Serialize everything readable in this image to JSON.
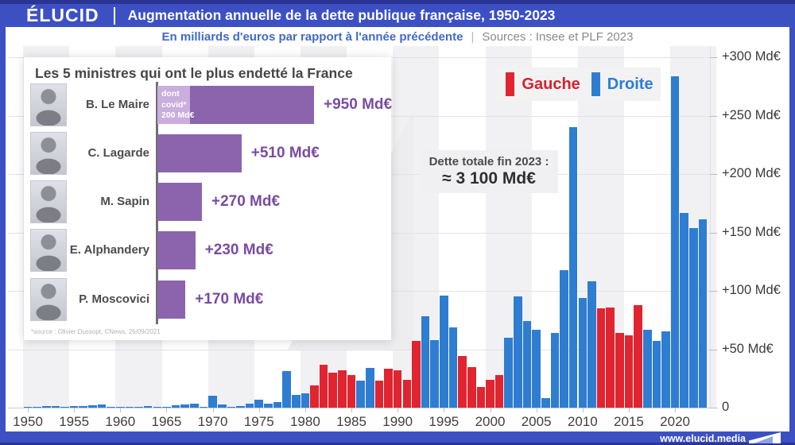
{
  "header": {
    "logo": "ÉLUCID",
    "title": "Augmentation annuelle de la dette publique française, 1950-2023"
  },
  "subtitle": {
    "unit": "En milliards d'euros par rapport à l'année précédente",
    "separator": "|",
    "sources": "Sources : Insee et PLF 2023"
  },
  "legend": {
    "items": [
      {
        "label": "Gauche",
        "color": "#d6222f",
        "swatch": "#e02430"
      },
      {
        "label": "Droite",
        "color": "#2d7cd6",
        "swatch": "#2e7dd1"
      }
    ]
  },
  "annotation": {
    "line1": "Dette totale fin 2023 :",
    "line2": "≈ 3 100 Md€"
  },
  "inset": {
    "title": "Les 5 ministres qui ont le plus endetté la France",
    "bar_color": "#8c64ae",
    "covid_color": "#c9aede",
    "ministers": [
      {
        "name": "B. Le Maire",
        "value": 950,
        "label": "+950 Md€",
        "covid_value": 200,
        "covid_note": [
          "dont",
          "covid*",
          "200 Md€"
        ]
      },
      {
        "name": "C. Lagarde",
        "value": 510,
        "label": "+510 Md€"
      },
      {
        "name": "M. Sapin",
        "value": 270,
        "label": "+270 Md€"
      },
      {
        "name": "E. Alphandery",
        "value": 230,
        "label": "+230 Md€"
      },
      {
        "name": "P. Moscovici",
        "value": 170,
        "label": "+170 Md€"
      }
    ],
    "source": "*source : Olivier Dussopt, CNews, 26/09/2021"
  },
  "footer": {
    "url": "www.elucid.media"
  },
  "chart_data": {
    "type": "bar",
    "title": "Augmentation annuelle de la dette publique française, 1950-2023",
    "xlabel": "",
    "ylabel": "Md€ par rapport à l'année précédente",
    "ylim": [
      0,
      310
    ],
    "grid": true,
    "legend_position": "top-right",
    "ytick_labels": [
      "+300 Md€",
      "+250 Md€",
      "+200 Md€",
      "+150 Md€",
      "+100 Md€",
      "+50 Md€",
      "0"
    ],
    "ytick_values": [
      300,
      250,
      200,
      150,
      100,
      50,
      0
    ],
    "xtick_labels": [
      1950,
      1955,
      1960,
      1965,
      1970,
      1975,
      1980,
      1985,
      1990,
      1995,
      2000,
      2005,
      2010,
      2015,
      2020
    ],
    "colors": {
      "gauche": "#e02430",
      "droite": "#2e7dd1"
    },
    "series": [
      {
        "year": 1950,
        "value": 0.3,
        "bloc": "droite"
      },
      {
        "year": 1951,
        "value": 0.4,
        "bloc": "droite"
      },
      {
        "year": 1952,
        "value": 1.2,
        "bloc": "droite"
      },
      {
        "year": 1953,
        "value": 1.5,
        "bloc": "droite"
      },
      {
        "year": 1954,
        "value": 0.8,
        "bloc": "droite"
      },
      {
        "year": 1955,
        "value": 1.2,
        "bloc": "droite"
      },
      {
        "year": 1956,
        "value": 1.6,
        "bloc": "droite"
      },
      {
        "year": 1957,
        "value": 2.2,
        "bloc": "droite"
      },
      {
        "year": 1958,
        "value": 2.8,
        "bloc": "droite"
      },
      {
        "year": 1959,
        "value": 0.6,
        "bloc": "droite"
      },
      {
        "year": 1960,
        "value": 0.4,
        "bloc": "droite"
      },
      {
        "year": 1961,
        "value": 0.3,
        "bloc": "droite"
      },
      {
        "year": 1962,
        "value": 1.0,
        "bloc": "droite"
      },
      {
        "year": 1963,
        "value": 1.2,
        "bloc": "droite"
      },
      {
        "year": 1964,
        "value": 0.4,
        "bloc": "droite"
      },
      {
        "year": 1965,
        "value": 0.6,
        "bloc": "droite"
      },
      {
        "year": 1966,
        "value": 1.8,
        "bloc": "droite"
      },
      {
        "year": 1967,
        "value": 2.8,
        "bloc": "droite"
      },
      {
        "year": 1968,
        "value": 3.2,
        "bloc": "droite"
      },
      {
        "year": 1969,
        "value": 0.6,
        "bloc": "droite"
      },
      {
        "year": 1970,
        "value": 10,
        "bloc": "droite"
      },
      {
        "year": 1971,
        "value": 2.5,
        "bloc": "droite"
      },
      {
        "year": 1972,
        "value": 0.8,
        "bloc": "droite"
      },
      {
        "year": 1973,
        "value": 1.2,
        "bloc": "droite"
      },
      {
        "year": 1974,
        "value": 3.5,
        "bloc": "droite"
      },
      {
        "year": 1975,
        "value": 6.5,
        "bloc": "droite"
      },
      {
        "year": 1976,
        "value": 3.2,
        "bloc": "droite"
      },
      {
        "year": 1977,
        "value": 5,
        "bloc": "droite"
      },
      {
        "year": 1978,
        "value": 31,
        "bloc": "droite"
      },
      {
        "year": 1979,
        "value": 11,
        "bloc": "droite"
      },
      {
        "year": 1980,
        "value": 12,
        "bloc": "droite"
      },
      {
        "year": 1981,
        "value": 19,
        "bloc": "gauche"
      },
      {
        "year": 1982,
        "value": 37,
        "bloc": "gauche"
      },
      {
        "year": 1983,
        "value": 30,
        "bloc": "gauche"
      },
      {
        "year": 1984,
        "value": 32,
        "bloc": "gauche"
      },
      {
        "year": 1985,
        "value": 28,
        "bloc": "gauche"
      },
      {
        "year": 1986,
        "value": 23,
        "bloc": "droite"
      },
      {
        "year": 1987,
        "value": 34,
        "bloc": "droite"
      },
      {
        "year": 1988,
        "value": 23,
        "bloc": "gauche"
      },
      {
        "year": 1989,
        "value": 33,
        "bloc": "gauche"
      },
      {
        "year": 1990,
        "value": 32,
        "bloc": "gauche"
      },
      {
        "year": 1991,
        "value": 24,
        "bloc": "gauche"
      },
      {
        "year": 1992,
        "value": 57,
        "bloc": "gauche"
      },
      {
        "year": 1993,
        "value": 78,
        "bloc": "droite"
      },
      {
        "year": 1994,
        "value": 58,
        "bloc": "droite"
      },
      {
        "year": 1995,
        "value": 96,
        "bloc": "droite"
      },
      {
        "year": 1996,
        "value": 69,
        "bloc": "droite"
      },
      {
        "year": 1997,
        "value": 44,
        "bloc": "gauche"
      },
      {
        "year": 1998,
        "value": 35,
        "bloc": "gauche"
      },
      {
        "year": 1999,
        "value": 18,
        "bloc": "gauche"
      },
      {
        "year": 2000,
        "value": 24,
        "bloc": "gauche"
      },
      {
        "year": 2001,
        "value": 28,
        "bloc": "gauche"
      },
      {
        "year": 2002,
        "value": 60,
        "bloc": "droite"
      },
      {
        "year": 2003,
        "value": 95,
        "bloc": "droite"
      },
      {
        "year": 2004,
        "value": 74,
        "bloc": "droite"
      },
      {
        "year": 2005,
        "value": 67,
        "bloc": "droite"
      },
      {
        "year": 2006,
        "value": 8,
        "bloc": "droite"
      },
      {
        "year": 2007,
        "value": 64,
        "bloc": "droite"
      },
      {
        "year": 2008,
        "value": 118,
        "bloc": "droite"
      },
      {
        "year": 2009,
        "value": 240,
        "bloc": "droite"
      },
      {
        "year": 2010,
        "value": 94,
        "bloc": "droite"
      },
      {
        "year": 2011,
        "value": 108,
        "bloc": "droite"
      },
      {
        "year": 2012,
        "value": 85,
        "bloc": "gauche"
      },
      {
        "year": 2013,
        "value": 86,
        "bloc": "gauche"
      },
      {
        "year": 2014,
        "value": 64,
        "bloc": "gauche"
      },
      {
        "year": 2015,
        "value": 62,
        "bloc": "gauche"
      },
      {
        "year": 2016,
        "value": 88,
        "bloc": "gauche"
      },
      {
        "year": 2017,
        "value": 67,
        "bloc": "droite"
      },
      {
        "year": 2018,
        "value": 57,
        "bloc": "droite"
      },
      {
        "year": 2019,
        "value": 65,
        "bloc": "droite"
      },
      {
        "year": 2020,
        "value": 284,
        "bloc": "droite"
      },
      {
        "year": 2021,
        "value": 167,
        "bloc": "droite"
      },
      {
        "year": 2022,
        "value": 154,
        "bloc": "droite"
      },
      {
        "year": 2023,
        "value": 161,
        "bloc": "droite"
      }
    ]
  }
}
